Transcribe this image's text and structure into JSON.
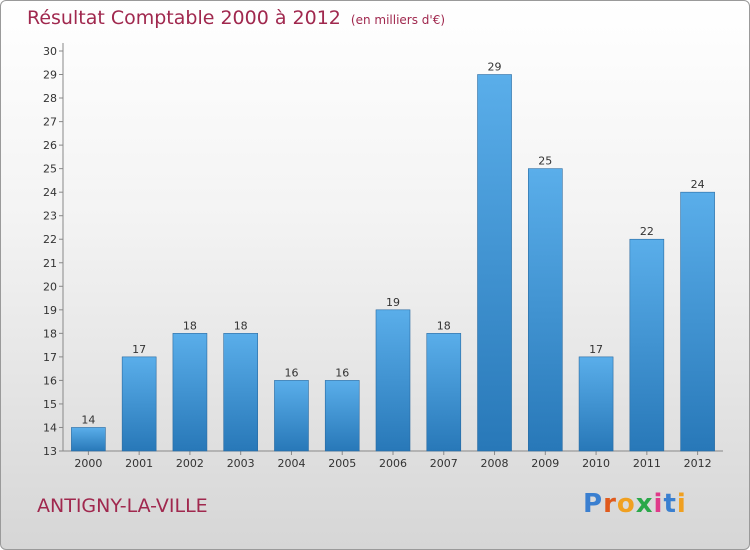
{
  "header": {
    "title": "Résultat Comptable 2000 à 2012",
    "subtitle": "(en milliers d'€)"
  },
  "footer": {
    "commune": "ANTIGNY-LA-VILLE",
    "logo": "Proxiti"
  },
  "colors": {
    "bar_light": "#5aaeea",
    "bar_dark": "#2878b8",
    "title": "#a0284e"
  },
  "chart_data": {
    "type": "bar",
    "title": "Résultat Comptable 2000 à 2012",
    "subtitle": "(en milliers d'€)",
    "categories": [
      "2000",
      "2001",
      "2002",
      "2003",
      "2004",
      "2005",
      "2006",
      "2007",
      "2008",
      "2009",
      "2010",
      "2011",
      "2012"
    ],
    "values": [
      14,
      17,
      18,
      18,
      16,
      16,
      19,
      18,
      29,
      25,
      17,
      22,
      24
    ],
    "ylim": [
      13,
      30
    ],
    "yticks": [
      13,
      14,
      15,
      16,
      17,
      18,
      19,
      20,
      21,
      22,
      23,
      24,
      25,
      26,
      27,
      28,
      29,
      30
    ],
    "grid": false,
    "legend": "none"
  }
}
